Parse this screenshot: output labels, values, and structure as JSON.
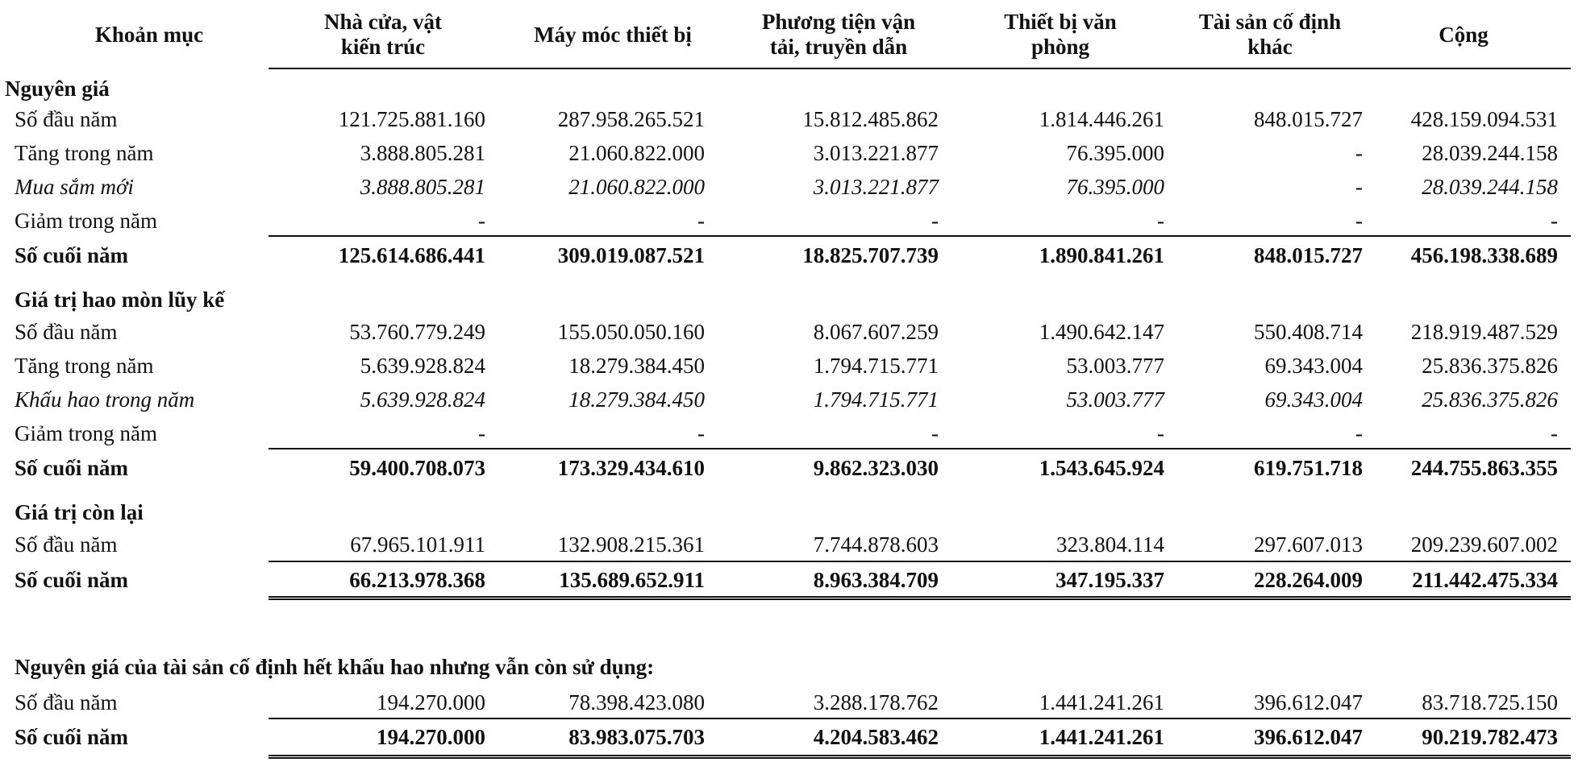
{
  "columns": [
    {
      "key": "muc",
      "label_lines": [
        "Khoản mục"
      ]
    },
    {
      "key": "nha_cua",
      "label_lines": [
        "Nhà cửa, vật",
        "kiến trúc"
      ]
    },
    {
      "key": "may_moc",
      "label_lines": [
        "Máy móc thiết bị"
      ]
    },
    {
      "key": "phuong_tien",
      "label_lines": [
        "Phương tiện vận",
        "tải, truyền dẫn"
      ]
    },
    {
      "key": "thiet_bi_vp",
      "label_lines": [
        "Thiết bị văn",
        "phòng"
      ]
    },
    {
      "key": "tscd_khac",
      "label_lines": [
        "Tài sản cố định",
        "khác"
      ]
    },
    {
      "key": "cong",
      "label_lines": [
        "Cộng"
      ]
    }
  ],
  "sections": {
    "nguyen_gia": {
      "title": "Nguyên giá",
      "rows": [
        {
          "label": "Số đầu năm",
          "values": [
            "121.725.881.160",
            "287.958.265.521",
            "15.812.485.862",
            "1.814.446.261",
            "848.015.727",
            "428.159.094.531"
          ]
        },
        {
          "label": "Tăng trong năm",
          "values": [
            "3.888.805.281",
            "21.060.822.000",
            "3.013.221.877",
            "76.395.000",
            "-",
            "28.039.244.158"
          ]
        },
        {
          "label": "Mua sắm mới",
          "values": [
            "3.888.805.281",
            "21.060.822.000",
            "3.013.221.877",
            "76.395.000",
            "-",
            "28.039.244.158"
          ]
        },
        {
          "label": "Giảm trong năm",
          "values": [
            "-",
            "-",
            "-",
            "-",
            "-",
            "-"
          ]
        },
        {
          "label": "Số cuối năm",
          "values": [
            "125.614.686.441",
            "309.019.087.521",
            "18.825.707.739",
            "1.890.841.261",
            "848.015.727",
            "456.198.338.689"
          ]
        }
      ]
    },
    "hao_mon": {
      "title": "Giá trị hao mòn lũy kế",
      "rows": [
        {
          "label": "Số đầu năm",
          "values": [
            "53.760.779.249",
            "155.050.050.160",
            "8.067.607.259",
            "1.490.642.147",
            "550.408.714",
            "218.919.487.529"
          ]
        },
        {
          "label": "Tăng trong năm",
          "values": [
            "5.639.928.824",
            "18.279.384.450",
            "1.794.715.771",
            "53.003.777",
            "69.343.004",
            "25.836.375.826"
          ]
        },
        {
          "label": "Khấu hao trong năm",
          "values": [
            "5.639.928.824",
            "18.279.384.450",
            "1.794.715.771",
            "53.003.777",
            "69.343.004",
            "25.836.375.826"
          ]
        },
        {
          "label": "Giảm trong năm",
          "values": [
            "-",
            "-",
            "-",
            "-",
            "-",
            "-"
          ]
        },
        {
          "label": "Số cuối năm",
          "values": [
            "59.400.708.073",
            "173.329.434.610",
            "9.862.323.030",
            "1.543.645.924",
            "619.751.718",
            "244.755.863.355"
          ]
        }
      ]
    },
    "con_lai": {
      "title": "Giá trị còn lại",
      "rows": [
        {
          "label": "Số đầu năm",
          "values": [
            "67.965.101.911",
            "132.908.215.361",
            "7.744.878.603",
            "323.804.114",
            "297.607.013",
            "209.239.607.002"
          ]
        },
        {
          "label": "Số cuối năm",
          "values": [
            "66.213.978.368",
            "135.689.652.911",
            "8.963.384.709",
            "347.195.337",
            "228.264.009",
            "211.442.475.334"
          ]
        }
      ]
    },
    "het_khau_hao": {
      "title": "Nguyên giá của tài sản cố định hết khấu hao nhưng vẫn còn sử dụng:",
      "rows": [
        {
          "label": "Số đầu năm",
          "values": [
            "194.270.000",
            "78.398.423.080",
            "3.288.178.762",
            "1.441.241.261",
            "396.612.047",
            "83.718.725.150"
          ]
        },
        {
          "label": "Số cuối năm",
          "values": [
            "194.270.000",
            "83.983.075.703",
            "4.204.583.462",
            "1.441.241.261",
            "396.612.047",
            "90.219.782.473"
          ]
        }
      ]
    }
  }
}
